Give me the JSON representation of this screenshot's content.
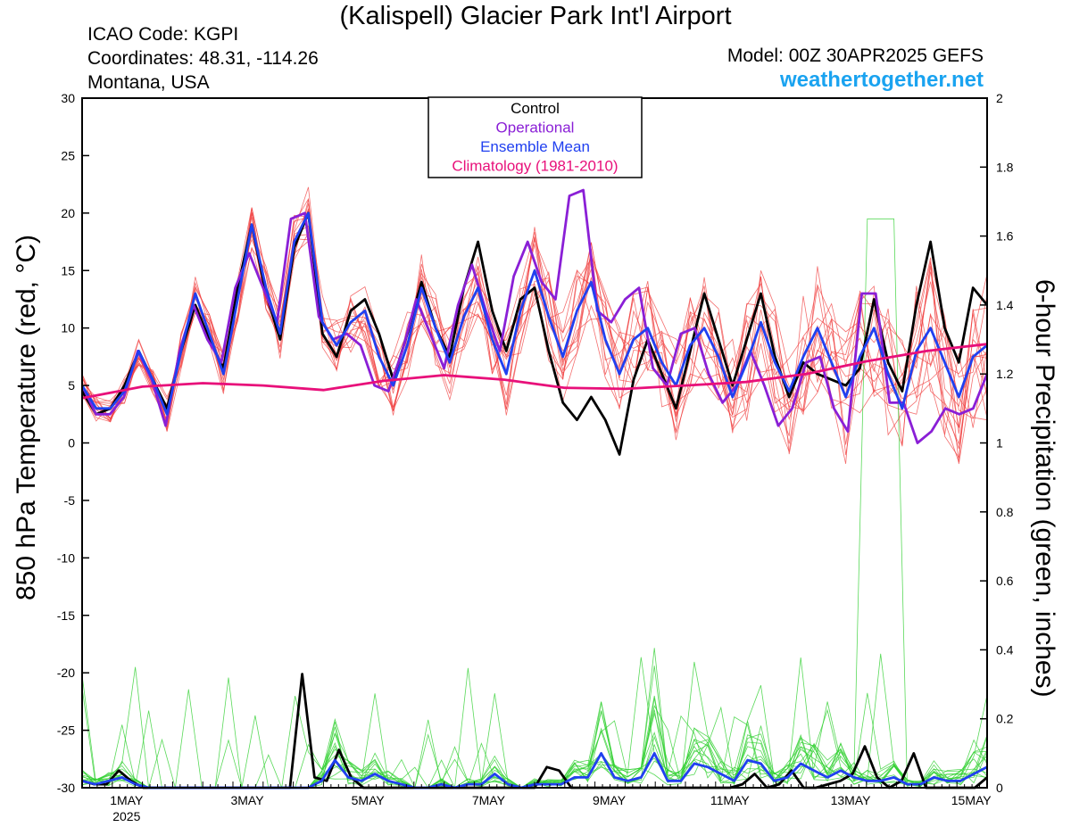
{
  "header": {
    "title": "(Kalispell) Glacier Park Int'l Airport",
    "icao": "ICAO Code: KGPI",
    "coords": "Coordinates: 48.31, -114.26",
    "state": "Montana, USA",
    "model": "Model: 00Z 30APR2025 GEFS",
    "site": "weathertogether.net"
  },
  "colors": {
    "control": "#000000",
    "operational": "#8a1fd6",
    "mean": "#2040f0",
    "climatology": "#e8107a",
    "members_temp": "#f04040",
    "members_precip": "#30d030",
    "site": "#1aa3f0"
  },
  "chart_data": {
    "type": "line",
    "title": "(Kalispell) Glacier Park Int'l Airport",
    "ylabel_left": "850 hPa Temperature (red, °C)",
    "ylabel_right": "6-hour Precipitation (green, inches)",
    "ylim_left": [
      -30,
      30
    ],
    "ylim_right": [
      0,
      2
    ],
    "yticks_left": [
      "30",
      "25",
      "20",
      "15",
      "10",
      "5",
      "0",
      "-5",
      "-10",
      "-15",
      "-20",
      "-25",
      "-30"
    ],
    "yticks_right": [
      "2",
      "1.8",
      "1.6",
      "1.4",
      "1.2",
      "1",
      "0.8",
      "0.6",
      "0.4",
      "0.2",
      "0"
    ],
    "xticks": [
      {
        "label": "1MAY",
        "sub": "2025"
      },
      {
        "label": "3MAY",
        "sub": ""
      },
      {
        "label": "5MAY",
        "sub": ""
      },
      {
        "label": "7MAY",
        "sub": ""
      },
      {
        "label": "9MAY",
        "sub": ""
      },
      {
        "label": "11MAY",
        "sub": ""
      },
      {
        "label": "13MAY",
        "sub": ""
      },
      {
        "label": "15MAY",
        "sub": ""
      }
    ],
    "legend": [
      "Control",
      "Operational",
      "Ensemble Mean",
      "Climatology (1981-2010)"
    ],
    "legend_position": "top-center",
    "series": [
      {
        "name": "Control",
        "axis": "left",
        "values": [
          4.5,
          2.5,
          3,
          5,
          8,
          5.5,
          3,
          8,
          12,
          9,
          6.5,
          13.5,
          19,
          13,
          9,
          17,
          20,
          9.5,
          7.5,
          11.5,
          12.5,
          9.5,
          5.5,
          9.5,
          14,
          10,
          7.5,
          13.5,
          17.5,
          11.5,
          8,
          12.5,
          13.5,
          8,
          3.5,
          2,
          4,
          2,
          -1,
          5.5,
          9,
          6,
          3,
          8,
          13,
          9,
          5,
          9,
          13,
          7.5,
          4,
          7,
          6,
          5.5,
          5,
          6.5,
          12.5,
          7,
          4.5,
          12,
          17.5,
          10,
          7,
          13.5,
          12
        ]
      },
      {
        "name": "Operational",
        "axis": "left",
        "values": [
          5,
          2.5,
          2.5,
          4,
          8,
          5.5,
          1.5,
          8,
          12,
          9,
          7,
          13.5,
          16.5,
          13.5,
          10.5,
          19.5,
          20,
          11,
          9,
          9.5,
          8.5,
          5,
          4.5,
          8,
          12.5,
          9.5,
          6.5,
          12,
          15.5,
          11.5,
          8,
          14.5,
          17.5,
          14,
          12.5,
          21.5,
          22,
          11.5,
          10.5,
          12.5,
          13.5,
          6.5,
          5,
          9.5,
          10,
          6,
          3.5,
          5,
          8,
          5,
          1.5,
          3,
          7,
          7.5,
          3,
          1,
          13,
          13,
          3.5,
          3.5,
          0,
          1,
          3,
          2.5,
          3,
          6
        ]
      },
      {
        "name": "Ensemble Mean",
        "axis": "left",
        "values": [
          5,
          3,
          3,
          4.5,
          8,
          5.5,
          2.5,
          8,
          13,
          9.5,
          6,
          12.5,
          19,
          13.5,
          9.5,
          17.5,
          20,
          10.5,
          8.5,
          10.5,
          11.5,
          7.5,
          5,
          8.5,
          13.5,
          10,
          7,
          11,
          13.5,
          9,
          6,
          11.5,
          15,
          11,
          7.5,
          11.5,
          14,
          9,
          6,
          9,
          10,
          7,
          5,
          8.5,
          10,
          7.5,
          4,
          7,
          10.5,
          7,
          4.5,
          7.5,
          10,
          7,
          4,
          7.5,
          10,
          6,
          3,
          8,
          10,
          7,
          4,
          7.5,
          8.5
        ]
      },
      {
        "name": "Climatology (1981-2010)",
        "axis": "left",
        "values": [
          [
            0,
            3.9
          ],
          [
            8,
            4.9
          ],
          [
            16,
            5.2
          ],
          [
            24,
            5
          ],
          [
            32,
            4.6
          ],
          [
            40,
            5.4
          ],
          [
            48,
            5.9
          ],
          [
            56,
            5.5
          ],
          [
            64,
            4.8
          ],
          [
            72,
            4.7
          ],
          [
            80,
            5
          ],
          [
            88,
            5.3
          ],
          [
            96,
            6
          ],
          [
            104,
            7.1
          ],
          [
            112,
            8
          ],
          [
            120,
            8.6
          ]
        ]
      },
      {
        "name": "Control precip",
        "axis": "right",
        "values": [
          0.02,
          0.01,
          0.01,
          0.05,
          0.02,
          0,
          0,
          0,
          0,
          0,
          0,
          0,
          0,
          0,
          0,
          0,
          0,
          0,
          0.33,
          0.03,
          0.02,
          0.11,
          0.03,
          0,
          0,
          0,
          0,
          0,
          0,
          0,
          0,
          0,
          0,
          0,
          0,
          0,
          0,
          0,
          0.06,
          0.05,
          0,
          0,
          0,
          0,
          0,
          0,
          0,
          0,
          0,
          0,
          0,
          0,
          0,
          0,
          0.01,
          0.04,
          0,
          0.01,
          0.05,
          0,
          0,
          0.01,
          0.02,
          0.04,
          0.12,
          0.03,
          0,
          0.02,
          0.1,
          0,
          0,
          0,
          0,
          0,
          0.03
        ]
      },
      {
        "name": "Ensemble mean precip",
        "axis": "right",
        "values": [
          0.02,
          0.01,
          0.02,
          0.03,
          0.01,
          0,
          0,
          0,
          0,
          0,
          0,
          0,
          0,
          0,
          0,
          0,
          0,
          0,
          0.02,
          0.08,
          0.03,
          0.02,
          0.04,
          0.02,
          0.01,
          0,
          0,
          0.01,
          0,
          0.01,
          0.01,
          0.04,
          0.01,
          0,
          0.01,
          0.01,
          0.01,
          0.03,
          0.03,
          0.1,
          0.03,
          0.02,
          0.03,
          0.1,
          0.02,
          0.02,
          0.07,
          0.06,
          0.04,
          0.02,
          0.08,
          0.07,
          0.02,
          0.03,
          0.07,
          0.05,
          0.03,
          0.05,
          0.03,
          0.02,
          0.02,
          0.03,
          0.01,
          0.01,
          0.03,
          0.02,
          0.02,
          0.04,
          0.06
        ]
      }
    ]
  }
}
